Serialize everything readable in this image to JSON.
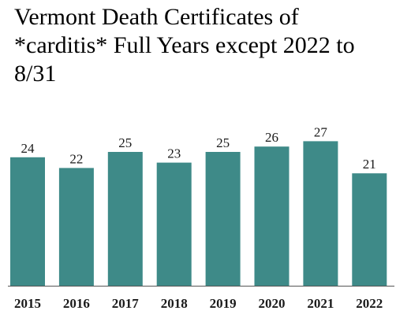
{
  "chart_data": {
    "type": "bar",
    "title": "Vermont Death Certificates of *carditis* Full Years except 2022 to 8/31",
    "xlabel": "",
    "ylabel": "",
    "categories": [
      "2015",
      "2016",
      "2017",
      "2018",
      "2019",
      "2020",
      "2021",
      "2022"
    ],
    "values": [
      24,
      22,
      25,
      23,
      25,
      26,
      27,
      21
    ],
    "ylim": [
      0,
      28.5
    ],
    "grid": false,
    "legend": "none",
    "data_labels": true,
    "colors": {
      "bar": "#3e8a88",
      "axis": "#555555"
    }
  }
}
